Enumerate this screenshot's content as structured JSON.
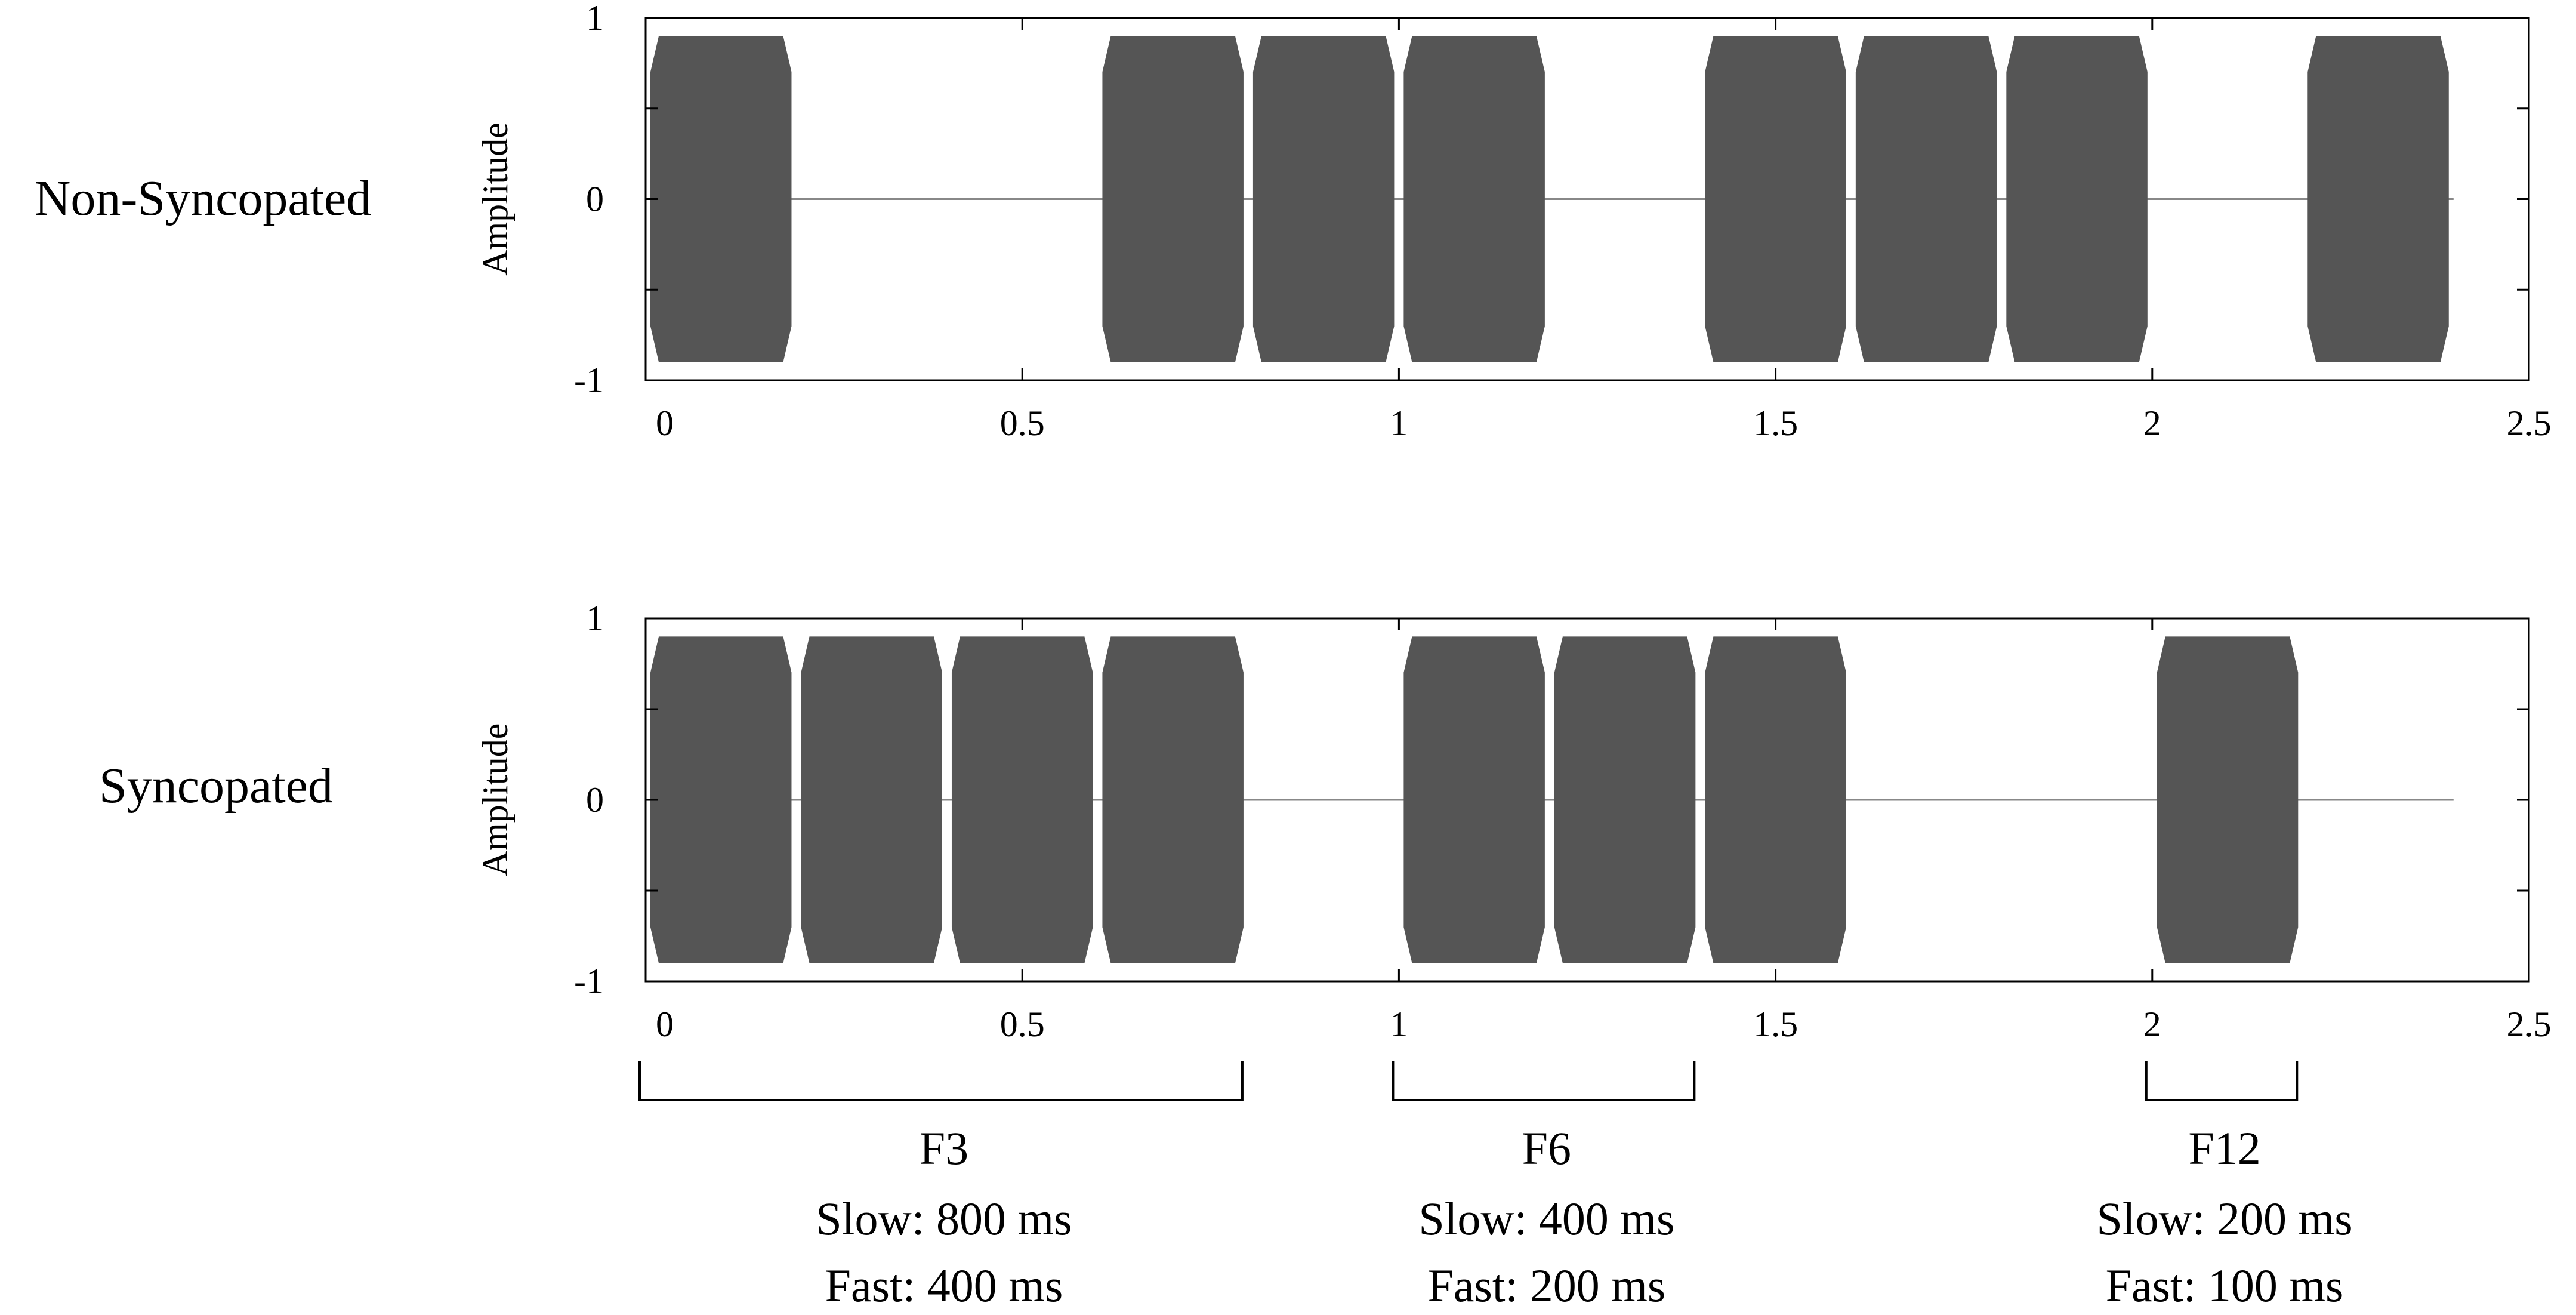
{
  "chart_data": [
    {
      "type": "line",
      "row_label": "Non-Syncopated",
      "ylabel": "Amplitude",
      "xlim": [
        0,
        2.5
      ],
      "ylim": [
        -1,
        1
      ],
      "x_ticks": [
        "0",
        "0.5",
        "1",
        "1.5",
        "2",
        "2.5"
      ],
      "y_ticks": [
        "1",
        "0",
        "-1"
      ],
      "signal_end": 2.4,
      "bursts": [
        {
          "start": 0.0,
          "end": 0.2
        },
        {
          "start": 0.6,
          "end": 0.8
        },
        {
          "start": 0.8,
          "end": 1.0
        },
        {
          "start": 1.0,
          "end": 1.2
        },
        {
          "start": 1.4,
          "end": 1.6
        },
        {
          "start": 1.6,
          "end": 1.8
        },
        {
          "start": 1.8,
          "end": 2.0
        },
        {
          "start": 2.2,
          "end": 2.4
        }
      ],
      "burst_amplitude": 0.9,
      "grid": false,
      "color": "#555555"
    },
    {
      "type": "line",
      "row_label": "Syncopated",
      "ylabel": "Amplitude",
      "xlim": [
        0,
        2.5
      ],
      "ylim": [
        -1,
        1
      ],
      "x_ticks": [
        "0",
        "0.5",
        "1",
        "1.5",
        "2",
        "2.5"
      ],
      "y_ticks": [
        "1",
        "0",
        "-1"
      ],
      "signal_end": 2.4,
      "bursts": [
        {
          "start": 0.0,
          "end": 0.2
        },
        {
          "start": 0.2,
          "end": 0.4
        },
        {
          "start": 0.4,
          "end": 0.6
        },
        {
          "start": 0.6,
          "end": 0.8
        },
        {
          "start": 1.0,
          "end": 1.2
        },
        {
          "start": 1.2,
          "end": 1.4
        },
        {
          "start": 1.4,
          "end": 1.6
        },
        {
          "start": 2.0,
          "end": 2.2
        }
      ],
      "burst_amplitude": 0.9,
      "grid": false,
      "color": "#555555"
    }
  ],
  "annotations": [
    {
      "start": 0.0,
      "end": 0.8,
      "name": "F3",
      "slow": "Slow: 800 ms",
      "fast": "Fast: 400 ms"
    },
    {
      "start": 1.0,
      "end": 1.4,
      "name": "F6",
      "slow": "Slow: 400 ms",
      "fast": "Fast: 200 ms"
    },
    {
      "start": 2.0,
      "end": 2.2,
      "name": "F12",
      "slow": "Slow: 200 ms",
      "fast": "Fast: 100 ms"
    }
  ]
}
